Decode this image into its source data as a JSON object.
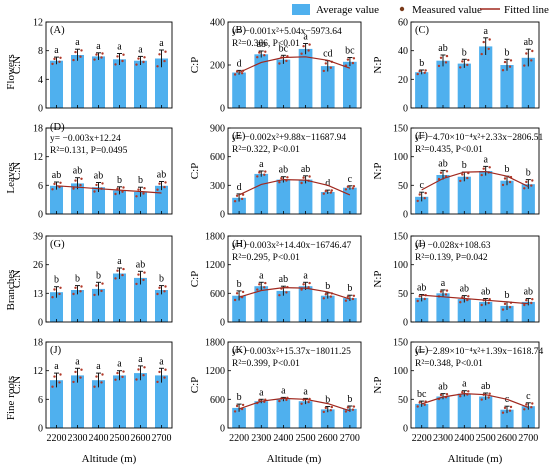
{
  "legend": {
    "items": [
      {
        "label": "Average value",
        "kind": "bar",
        "color": "#4fb0ee"
      },
      {
        "label": "Measured value",
        "kind": "dot",
        "color": "#7a3a1a"
      },
      {
        "label": "Fitted line",
        "kind": "line",
        "color": "#a0281e"
      }
    ]
  },
  "row_labels": [
    "Flowers",
    "Leaves",
    "Branches",
    "Fine roots"
  ],
  "shared_xlabel": "Altitude (m)",
  "colors": {
    "bar": "#4fb0ee",
    "error": "#1a1a1a",
    "dot": "#b23a2a",
    "fit": "#a0281e"
  },
  "chart_data": [
    {
      "type": "bar",
      "panel": "(A)",
      "ylabel": "C:N",
      "ylim": [
        0,
        12
      ],
      "yticks": [
        0,
        4,
        8,
        12
      ],
      "categories": [
        "2200",
        "2300",
        "2400",
        "2500",
        "2600",
        "2700"
      ],
      "values": [
        6.6,
        7.4,
        7.2,
        6.8,
        6.6,
        6.9
      ],
      "errors": [
        0.5,
        0.8,
        0.5,
        0.8,
        0.6,
        1.2
      ],
      "letters": [
        "a",
        "a",
        "a",
        "a",
        "a",
        "a"
      ],
      "equation": [],
      "fit": null
    },
    {
      "type": "bar",
      "panel": "(B)",
      "ylabel": "C:P",
      "ylim": [
        0,
        400
      ],
      "yticks": [
        0,
        200,
        400
      ],
      "categories": [
        "2200",
        "2300",
        "2400",
        "2500",
        "2600",
        "2700"
      ],
      "values": [
        165,
        250,
        225,
        275,
        195,
        215
      ],
      "errors": [
        10,
        15,
        20,
        25,
        25,
        20
      ],
      "letters": [
        "d",
        "ab",
        "bc",
        "a",
        "cd",
        "bc"
      ],
      "equation": [
        "y= −0.001x²+5.04x−5973.64",
        "R²=0.366, P<0.01"
      ],
      "fit": [
        165,
        212,
        235,
        238,
        222,
        185
      ]
    },
    {
      "type": "bar",
      "panel": "(C)",
      "ylabel": "N:P",
      "ylim": [
        0,
        60
      ],
      "yticks": [
        0,
        20,
        40,
        60
      ],
      "categories": [
        "2200",
        "2300",
        "2400",
        "2500",
        "2600",
        "2700"
      ],
      "values": [
        25,
        33,
        31,
        43,
        30,
        35
      ],
      "errors": [
        1.5,
        4,
        3,
        6,
        4,
        6
      ],
      "letters": [
        "b",
        "ab",
        "b",
        "a",
        "b",
        "ab"
      ],
      "equation": [],
      "fit": null
    },
    {
      "type": "bar",
      "panel": "(D)",
      "ylabel": "C:N",
      "ylim": [
        0,
        18
      ],
      "yticks": [
        0,
        6,
        12,
        18
      ],
      "categories": [
        "2200",
        "2300",
        "2400",
        "2500",
        "2600",
        "2700"
      ],
      "values": [
        5.9,
        6.4,
        5.6,
        4.9,
        4.6,
        5.9
      ],
      "errors": [
        0.8,
        1.2,
        1.0,
        0.8,
        1.0,
        0.9
      ],
      "letters": [
        "ab",
        "ab",
        "ab",
        "b",
        "b",
        "ab"
      ],
      "equation": [
        "y= −0.003x+12.24",
        "R²=0.131, P=0.0495"
      ],
      "fit": [
        5.9,
        5.6,
        5.3,
        5.0,
        4.7,
        4.4
      ]
    },
    {
      "type": "bar",
      "panel": "(E)",
      "ylabel": "C:P",
      "ylim": [
        0,
        900
      ],
      "yticks": [
        0,
        300,
        600,
        900
      ],
      "categories": [
        "2200",
        "2300",
        "2400",
        "2500",
        "2600",
        "2700"
      ],
      "values": [
        170,
        420,
        360,
        360,
        230,
        275
      ],
      "errors": [
        40,
        30,
        30,
        40,
        20,
        20
      ],
      "letters": [
        "d",
        "a",
        "ab",
        "ab",
        "d",
        "c"
      ],
      "equation": [
        "y= −0.002x²+9.88x−11687.94",
        "R²=0.322, P<0.01"
      ],
      "fit": [
        200,
        310,
        360,
        355,
        300,
        200
      ]
    },
    {
      "type": "bar",
      "panel": "(F)",
      "ylabel": "N:P",
      "ylim": [
        0,
        150
      ],
      "yticks": [
        0,
        50,
        100,
        150
      ],
      "categories": [
        "2200",
        "2300",
        "2400",
        "2500",
        "2600",
        "2700"
      ],
      "values": [
        30,
        68,
        65,
        75,
        58,
        52
      ],
      "errors": [
        8,
        8,
        8,
        8,
        8,
        8
      ],
      "letters": [
        "c",
        "ab",
        "b",
        "a",
        "b",
        "b"
      ],
      "equation": [
        "y= −4.70×10⁻⁴x²+2.33x−2806.51",
        "R²=0.435, P<0.01"
      ],
      "fit": [
        42,
        62,
        73,
        74,
        66,
        48
      ]
    },
    {
      "type": "bar",
      "panel": "(G)",
      "ylabel": "C:N",
      "ylim": [
        0,
        39
      ],
      "yticks": [
        0,
        13,
        26,
        39
      ],
      "categories": [
        "2200",
        "2300",
        "2400",
        "2500",
        "2600",
        "2700"
      ],
      "values": [
        13.5,
        14.5,
        15,
        22,
        20,
        14.5
      ],
      "errors": [
        2.5,
        2,
        3,
        2.5,
        3,
        2
      ],
      "letters": [
        "b",
        "b",
        "b",
        "a",
        "ab",
        "b"
      ],
      "equation": [],
      "fit": null
    },
    {
      "type": "bar",
      "panel": "(H)",
      "ylabel": "C:P",
      "ylim": [
        0,
        1800
      ],
      "yticks": [
        0,
        600,
        1200,
        1800
      ],
      "categories": [
        "2200",
        "2300",
        "2400",
        "2500",
        "2600",
        "2700"
      ],
      "values": [
        550,
        750,
        650,
        750,
        550,
        500
      ],
      "errors": [
        100,
        80,
        100,
        80,
        60,
        60
      ],
      "letters": [
        "b",
        "a",
        "ab",
        "a",
        "b",
        "b"
      ],
      "equation": [
        "y= −0.003x²+14.40x−16746.47",
        "R²=0.295, P<0.01"
      ],
      "fit": [
        520,
        660,
        720,
        710,
        630,
        480
      ]
    },
    {
      "type": "bar",
      "panel": "(I)",
      "ylabel": "N:P",
      "ylim": [
        0,
        150
      ],
      "yticks": [
        0,
        50,
        100,
        150
      ],
      "categories": [
        "2200",
        "2300",
        "2400",
        "2500",
        "2600",
        "2700"
      ],
      "values": [
        42,
        50,
        40,
        35,
        28,
        35
      ],
      "errors": [
        6,
        6,
        6,
        6,
        7,
        6
      ],
      "letters": [
        "ab",
        "a",
        "ab",
        "ab",
        "b",
        "ab"
      ],
      "equation": [
        "y= −0.028x+108.63",
        "R²=0.139, P=0.042"
      ],
      "fit": [
        47,
        44,
        41,
        38,
        35,
        32
      ]
    },
    {
      "type": "bar",
      "panel": "(J)",
      "ylabel": "C:N",
      "ylim": [
        0,
        18
      ],
      "yticks": [
        0,
        6,
        12,
        18
      ],
      "categories": [
        "2200",
        "2300",
        "2400",
        "2500",
        "2600",
        "2700"
      ],
      "values": [
        10,
        11,
        10,
        11,
        11.5,
        11
      ],
      "errors": [
        1.5,
        1.5,
        1.5,
        1,
        1.5,
        1.5
      ],
      "letters": [
        "a",
        "a",
        "a",
        "a",
        "a",
        "a"
      ],
      "equation": [],
      "fit": null
    },
    {
      "type": "bar",
      "panel": "(K)",
      "ylabel": "C:P",
      "ylim": [
        0,
        1800
      ],
      "yticks": [
        0,
        600,
        1200,
        1800
      ],
      "categories": [
        "2200",
        "2300",
        "2400",
        "2500",
        "2600",
        "2700"
      ],
      "values": [
        420,
        560,
        600,
        560,
        390,
        400
      ],
      "errors": [
        80,
        40,
        40,
        60,
        60,
        60
      ],
      "letters": [
        "b",
        "a",
        "a",
        "a",
        "b",
        "b"
      ],
      "equation": [
        "y= −0.003x²+15.37x−18011.25",
        "R²=0.399, P<0.01"
      ],
      "fit": [
        400,
        560,
        620,
        600,
        510,
        360
      ]
    },
    {
      "type": "bar",
      "panel": "(L)",
      "ylabel": "N:P",
      "ylim": [
        0,
        150
      ],
      "yticks": [
        0,
        50,
        100,
        150
      ],
      "categories": [
        "2200",
        "2300",
        "2400",
        "2500",
        "2600",
        "2700"
      ],
      "values": [
        42,
        55,
        60,
        55,
        32,
        38
      ],
      "errors": [
        5,
        5,
        5,
        6,
        6,
        6
      ],
      "letters": [
        "bc",
        "ab",
        "a",
        "ab",
        "c",
        "c"
      ],
      "equation": [
        "y= −2.89×10⁻⁴x²+1.39x−1618.74",
        "R²=0.348, P<0.01"
      ],
      "fit": [
        42,
        54,
        60,
        58,
        50,
        36
      ]
    }
  ]
}
